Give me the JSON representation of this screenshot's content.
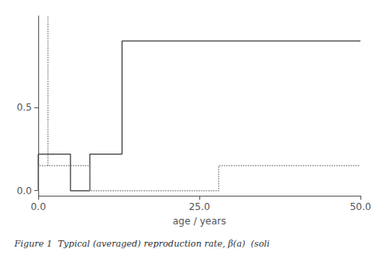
{
  "chart_data": {
    "type": "line",
    "xlabel": "age / years",
    "caption": "Figure 1  Typical (averaged) reproduction rate, β(a)  (soli",
    "xlim": [
      0,
      50
    ],
    "ylim": [
      -0.03,
      1.05
    ],
    "xticks": [
      {
        "value": 0.0,
        "label": "0.0"
      },
      {
        "value": 25.0,
        "label": "25.0"
      },
      {
        "value": 50.0,
        "label": "50.0"
      }
    ],
    "yticks": [
      {
        "value": 0.0,
        "label": "0.0"
      },
      {
        "value": 0.5,
        "label": "0.5"
      }
    ],
    "grid": false,
    "series": [
      {
        "x": [
          0,
          0,
          5,
          5,
          8,
          8,
          13,
          13,
          50
        ],
        "values": [
          0,
          0.22,
          0.22,
          0.0,
          0.0,
          0.22,
          0.22,
          0.9,
          0.9
        ],
        "color": "#555555",
        "line_style": "solid"
      },
      {
        "x": [
          0,
          0,
          8,
          8,
          28,
          28,
          50
        ],
        "values": [
          0,
          0.15,
          0.15,
          0.0,
          0.0,
          0.15,
          0.15
        ],
        "color": "#888888",
        "line_style": "dotted"
      },
      {
        "x": [
          1.5,
          1.5
        ],
        "values": [
          0.15,
          1.05
        ],
        "color": "#888888",
        "line_style": "dotted"
      }
    ]
  }
}
